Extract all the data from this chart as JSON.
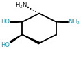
{
  "background": "#ffffff",
  "ring_color": "#000000",
  "text_color": "#000000",
  "cyan_color": "#0099bb",
  "line_width": 1.3,
  "vx": [
    0.5,
    0.72,
    0.72,
    0.5,
    0.28,
    0.28
  ],
  "vy": [
    0.78,
    0.63,
    0.4,
    0.25,
    0.4,
    0.63
  ],
  "figsize": [
    1.18,
    0.83
  ],
  "dpi": 100
}
